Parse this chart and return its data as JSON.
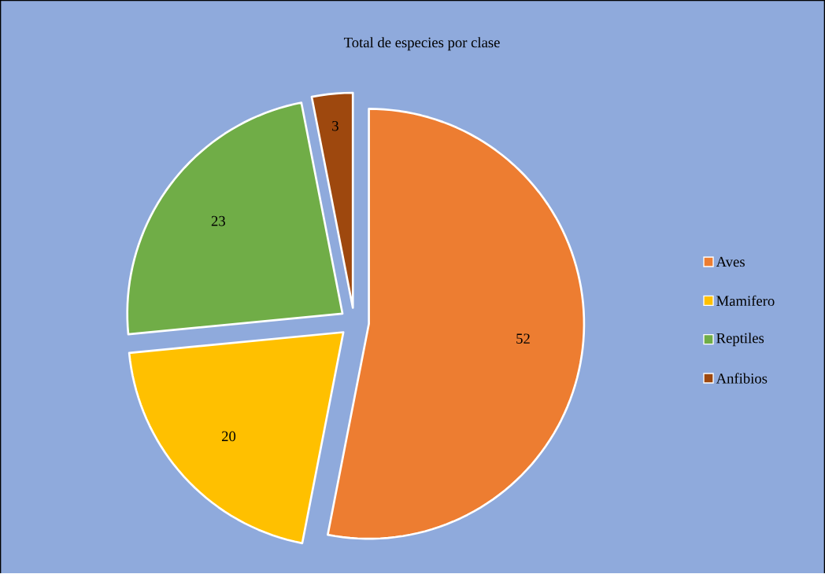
{
  "chart_data": {
    "type": "pie",
    "title": "Total de especies por clase",
    "categories": [
      "Aves",
      "Mamifero",
      "Reptiles",
      "Anfibios"
    ],
    "values": [
      52,
      20,
      23,
      3
    ],
    "colors": [
      "#ed7d31",
      "#ffc000",
      "#70ad47",
      "#9e480e"
    ],
    "legend": "right",
    "data_labels": true
  }
}
